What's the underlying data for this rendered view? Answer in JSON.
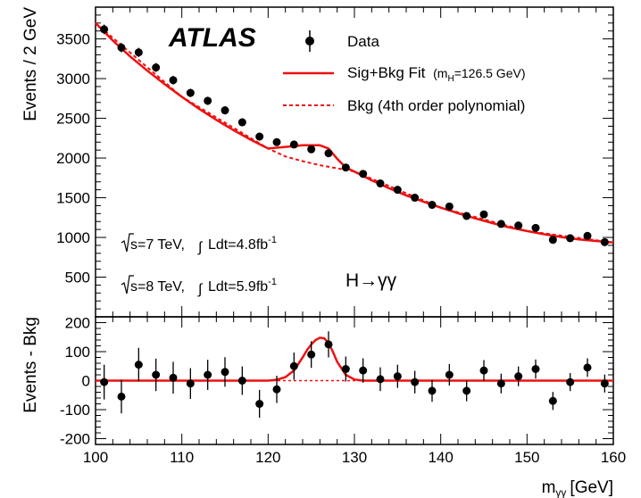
{
  "chart_data": [
    {
      "type": "scatter",
      "ylabel": "Events / 2 GeV",
      "xlim": [
        100,
        160
      ],
      "ylim": [
        0,
        3900
      ],
      "yticks": [
        500,
        1000,
        1500,
        2000,
        2500,
        3000,
        3500
      ],
      "grid": false,
      "legend_position": "top-right",
      "experiment_label": "ATLAS",
      "legend": {
        "data": "Data",
        "fit": "Sig+Bkg Fit",
        "fit_note": "(m_H=126.5 GeV)",
        "fit_note_main": "(m",
        "fit_note_sub": "H",
        "fit_note_rest": "=126.5 GeV)",
        "bkg": "Bkg (4th order polynomial)"
      },
      "annotations": {
        "lumi7_energy": "s=7 TeV,",
        "lumi7_int": "Ldt=4.8fb",
        "lumi8_energy": "s=8 TeV,",
        "lumi8_int": "Ldt=5.9fb",
        "lumi_exp": "-1",
        "channel": "H→γγ"
      },
      "colors": {
        "fit": "#ee1111",
        "data": "#000000"
      },
      "series": [
        {
          "name": "Data",
          "x": [
            101,
            103,
            105,
            107,
            109,
            111,
            113,
            115,
            117,
            119,
            121,
            123,
            125,
            127,
            129,
            131,
            133,
            135,
            137,
            139,
            141,
            143,
            145,
            147,
            149,
            151,
            153,
            155,
            157,
            159
          ],
          "y": [
            3620,
            3390,
            3330,
            3140,
            2980,
            2820,
            2720,
            2600,
            2450,
            2270,
            2200,
            2170,
            2110,
            2060,
            1880,
            1800,
            1680,
            1600,
            1500,
            1410,
            1390,
            1270,
            1290,
            1170,
            1150,
            1120,
            970,
            990,
            1020,
            940
          ],
          "y_error": [
            60,
            58,
            58,
            56,
            55,
            53,
            52,
            51,
            49,
            48,
            47,
            47,
            46,
            45,
            43,
            42,
            41,
            40,
            39,
            38,
            37,
            36,
            36,
            34,
            34,
            33,
            31,
            31,
            32,
            31
          ]
        },
        {
          "name": "Sig+Bkg Fit",
          "x": [
            100,
            102,
            104,
            106,
            108,
            110,
            112,
            114,
            116,
            118,
            120,
            122,
            123,
            124,
            125,
            126,
            127,
            128,
            129,
            130,
            132,
            134,
            136,
            138,
            140,
            142,
            144,
            146,
            148,
            150,
            152,
            154,
            156,
            158,
            160
          ],
          "y": [
            3700,
            3480,
            3280,
            3100,
            2930,
            2770,
            2620,
            2480,
            2350,
            2230,
            2120,
            2140,
            2150,
            2160,
            2160,
            2160,
            2120,
            1990,
            1880,
            1830,
            1720,
            1620,
            1530,
            1450,
            1375,
            1305,
            1240,
            1180,
            1125,
            1080,
            1040,
            1005,
            975,
            955,
            935
          ]
        },
        {
          "name": "Bkg (4th order polynomial)",
          "x": [
            100,
            110,
            120,
            122,
            124,
            126,
            128,
            130,
            140,
            150,
            160
          ],
          "y": [
            3700,
            2770,
            2120,
            2020,
            1960,
            1910,
            1870,
            1830,
            1375,
            1080,
            935
          ]
        }
      ]
    },
    {
      "type": "scatter",
      "xlabel": "m_γγ [GeV]",
      "xlabel_main": "m",
      "xlabel_sub": "γγ",
      "xlabel_unit": "[GeV]",
      "ylabel": "Events - Bkg",
      "xlim": [
        100,
        160
      ],
      "ylim": [
        -220,
        220
      ],
      "xticks": [
        100,
        110,
        120,
        130,
        140,
        150,
        160
      ],
      "yticks": [
        -200,
        -100,
        0,
        100,
        200
      ],
      "series": [
        {
          "name": "Data",
          "x": [
            101,
            103,
            105,
            107,
            109,
            111,
            113,
            115,
            117,
            119,
            121,
            123,
            125,
            127,
            129,
            131,
            133,
            135,
            137,
            139,
            141,
            143,
            145,
            147,
            149,
            151,
            153,
            155,
            157,
            159
          ],
          "y": [
            -5,
            -55,
            55,
            20,
            10,
            -10,
            20,
            30,
            0,
            -80,
            -30,
            50,
            90,
            125,
            40,
            35,
            5,
            15,
            -5,
            -35,
            20,
            -35,
            35,
            -10,
            15,
            40,
            -70,
            -5,
            45,
            -10
          ],
          "y_error": [
            60,
            58,
            58,
            56,
            55,
            53,
            52,
            51,
            49,
            48,
            47,
            47,
            46,
            45,
            43,
            42,
            41,
            40,
            39,
            38,
            37,
            36,
            36,
            34,
            34,
            33,
            31,
            31,
            32,
            31
          ]
        },
        {
          "name": "Sig+Bkg Fit",
          "x": [
            120,
            121,
            122,
            123,
            124,
            124.5,
            125,
            125.5,
            126,
            126.5,
            127,
            127.5,
            128,
            129,
            130,
            131
          ],
          "y": [
            0,
            3,
            12,
            35,
            80,
            105,
            125,
            140,
            148,
            146,
            130,
            100,
            65,
            20,
            4,
            0
          ]
        },
        {
          "name": "Bkg (4th order polynomial)",
          "x": [
            100,
            160
          ],
          "y": [
            0,
            0
          ]
        }
      ]
    }
  ]
}
